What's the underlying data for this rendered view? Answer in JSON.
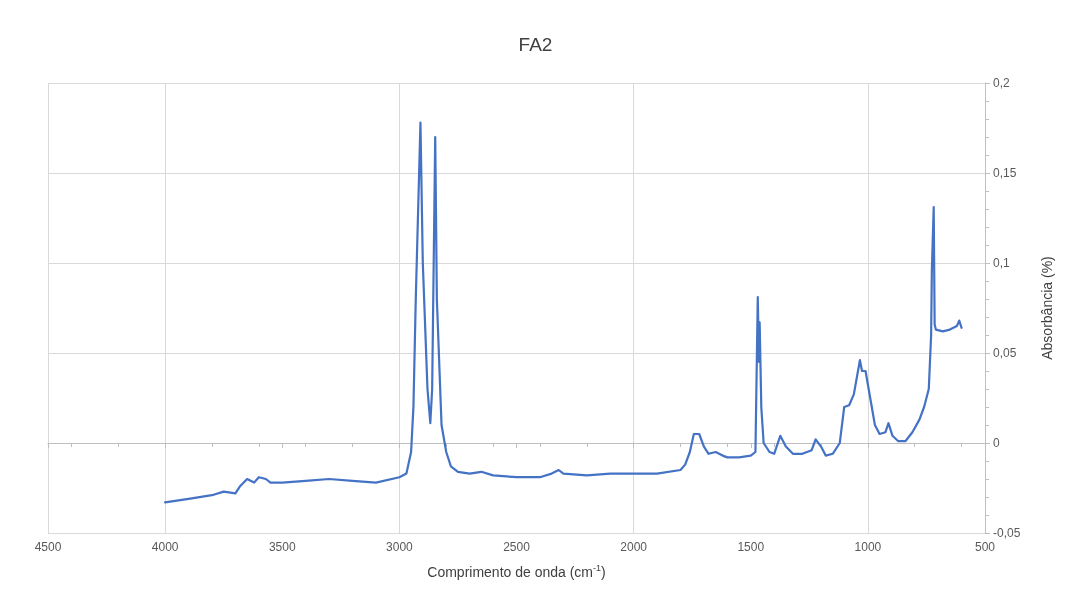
{
  "chart_data": {
    "type": "line",
    "title": "FA2",
    "xlabel": "Comprimento de onda (cm$^{-1}$)",
    "ylabel": "Absorbância (%)",
    "xlim": [
      4500,
      500
    ],
    "xticks": [
      4500,
      4000,
      3500,
      3000,
      2500,
      2000,
      1500,
      1000,
      500
    ],
    "ylim": [
      -0.05,
      0.2
    ],
    "yticks": [
      {
        "value": -0.05,
        "label": "-0,05"
      },
      0,
      {
        "value": 0.05,
        "label": "0,05"
      },
      {
        "value": 0.1,
        "label": "0,1"
      },
      {
        "value": 0.15,
        "label": "0,15"
      },
      {
        "value": 0.2,
        "label": "0,2"
      }
    ],
    "grid": true,
    "marker": "none",
    "line_style": "solid",
    "series": [
      {
        "color": "#4472c4",
        "x": [
          4000,
          3900,
          3800,
          3750,
          3700,
          3680,
          3650,
          3620,
          3600,
          3570,
          3550,
          3500,
          3400,
          3300,
          3200,
          3100,
          3000,
          2970,
          2950,
          2940,
          2930,
          2910,
          2900,
          2880,
          2868,
          2860,
          2847,
          2840,
          2820,
          2800,
          2780,
          2750,
          2700,
          2650,
          2600,
          2500,
          2400,
          2350,
          2320,
          2300,
          2200,
          2100,
          2000,
          1900,
          1800,
          1780,
          1760,
          1743,
          1720,
          1700,
          1680,
          1650,
          1620,
          1600,
          1550,
          1500,
          1480,
          1470,
          1465,
          1462,
          1455,
          1445,
          1420,
          1400,
          1374,
          1350,
          1320,
          1280,
          1240,
          1223,
          1200,
          1180,
          1150,
          1120,
          1101,
          1080,
          1060,
          1034,
          1025,
          1010,
          990,
          970,
          950,
          925,
          912,
          895,
          870,
          840,
          810,
          780,
          760,
          740,
          730,
          727,
          719,
          715,
          710,
          680,
          650,
          620,
          610,
          600
        ],
        "values": [
          -0.033,
          -0.031,
          -0.029,
          -0.027,
          -0.028,
          -0.024,
          -0.02,
          -0.022,
          -0.019,
          -0.02,
          -0.022,
          -0.022,
          -0.021,
          -0.02,
          -0.021,
          -0.022,
          -0.019,
          -0.017,
          -0.005,
          0.02,
          0.08,
          0.178,
          0.1,
          0.03,
          0.011,
          0.03,
          0.17,
          0.08,
          0.01,
          -0.005,
          -0.013,
          -0.016,
          -0.017,
          -0.016,
          -0.018,
          -0.019,
          -0.019,
          -0.017,
          -0.015,
          -0.017,
          -0.018,
          -0.017,
          -0.017,
          -0.017,
          -0.015,
          -0.012,
          -0.005,
          0.005,
          0.005,
          -0.002,
          -0.006,
          -0.005,
          -0.007,
          -0.008,
          -0.008,
          -0.007,
          -0.005,
          0.081,
          0.045,
          0.067,
          0.02,
          0.0,
          -0.005,
          -0.006,
          0.004,
          -0.002,
          -0.006,
          -0.006,
          -0.004,
          0.002,
          -0.002,
          -0.007,
          -0.006,
          0.0,
          0.02,
          0.021,
          0.027,
          0.046,
          0.04,
          0.04,
          0.025,
          0.01,
          0.005,
          0.006,
          0.011,
          0.004,
          0.001,
          0.001,
          0.006,
          0.013,
          0.02,
          0.03,
          0.06,
          0.095,
          0.131,
          0.066,
          0.063,
          0.062,
          0.063,
          0.065,
          0.068,
          0.064
        ]
      }
    ]
  }
}
